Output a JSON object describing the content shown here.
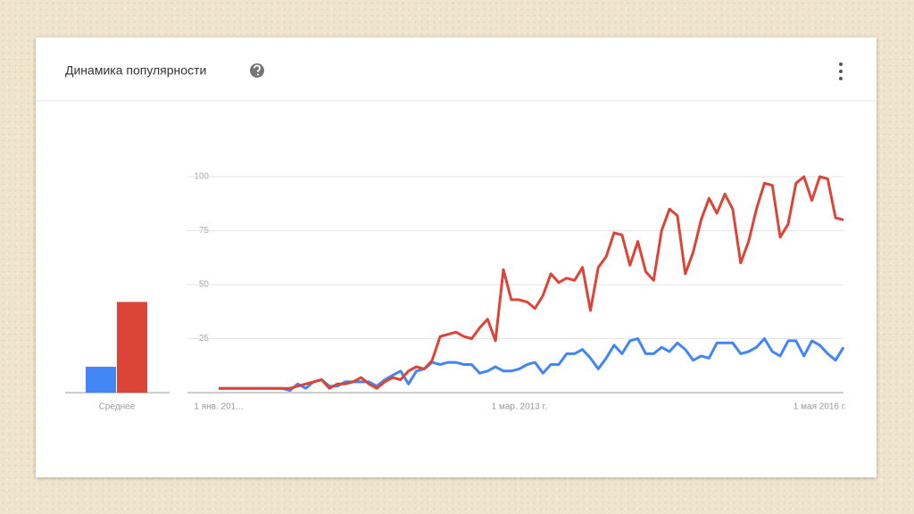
{
  "header": {
    "title": "Динамика популярности"
  },
  "chart_data": [
    {
      "type": "bar",
      "categories": [
        "Среднее"
      ],
      "series": [
        {
          "color": "#4285f4",
          "values": [
            12
          ]
        },
        {
          "color": "#db4437",
          "values": [
            42
          ]
        }
      ],
      "ylim": [
        0,
        100
      ]
    },
    {
      "type": "line",
      "categories": [
        "1 янв. 201...",
        null,
        null,
        null,
        null,
        null,
        null,
        null,
        null,
        null,
        null,
        null,
        null,
        null,
        null,
        null,
        null,
        null,
        null,
        null,
        null,
        null,
        null,
        null,
        null,
        null,
        null,
        null,
        null,
        null,
        null,
        null,
        null,
        null,
        null,
        null,
        null,
        null,
        "1 мар. 2013 г.",
        null,
        null,
        null,
        null,
        null,
        null,
        null,
        null,
        null,
        null,
        null,
        null,
        null,
        null,
        null,
        null,
        null,
        null,
        null,
        null,
        null,
        null,
        null,
        null,
        null,
        null,
        null,
        null,
        null,
        null,
        null,
        null,
        null,
        null,
        null,
        null,
        null,
        "1 мая 2016 г.",
        null,
        null,
        null
      ],
      "series": [
        {
          "color": "#4285f4",
          "values": [
            2,
            2,
            2,
            2,
            2,
            2,
            2,
            2,
            2,
            1,
            4,
            2,
            5,
            6,
            3,
            3,
            5,
            5,
            5,
            5,
            3,
            6,
            8,
            10,
            4,
            10,
            11,
            14,
            13,
            14,
            14,
            13,
            13,
            9,
            10,
            12,
            10,
            10,
            11,
            13,
            14,
            9,
            13,
            13,
            18,
            18,
            20,
            16,
            11,
            16,
            22,
            18,
            24,
            25,
            18,
            18,
            21,
            19,
            23,
            20,
            15,
            17,
            16,
            23,
            23,
            23,
            18,
            19,
            21,
            25,
            19,
            17,
            24,
            24,
            17,
            24,
            22,
            18,
            15,
            21
          ]
        },
        {
          "color": "#db4437",
          "values": [
            2,
            2,
            2,
            2,
            2,
            2,
            2,
            2,
            2,
            2,
            3,
            4,
            5,
            6,
            2,
            4,
            4,
            5,
            7,
            4,
            2,
            5,
            7,
            6,
            10,
            12,
            11,
            15,
            26,
            27,
            28,
            26,
            25,
            30,
            34,
            24,
            57,
            43,
            43,
            42,
            39,
            45,
            55,
            51,
            53,
            52,
            58,
            38,
            58,
            63,
            74,
            73,
            59,
            70,
            56,
            52,
            75,
            85,
            82,
            55,
            65,
            80,
            90,
            83,
            92,
            85,
            60,
            70,
            85,
            97,
            96,
            72,
            78,
            97,
            100,
            89,
            100,
            99,
            81,
            80
          ]
        }
      ],
      "ylim": [
        0,
        100
      ],
      "yticks": [
        25,
        50,
        75,
        100
      ],
      "grid": true
    }
  ]
}
